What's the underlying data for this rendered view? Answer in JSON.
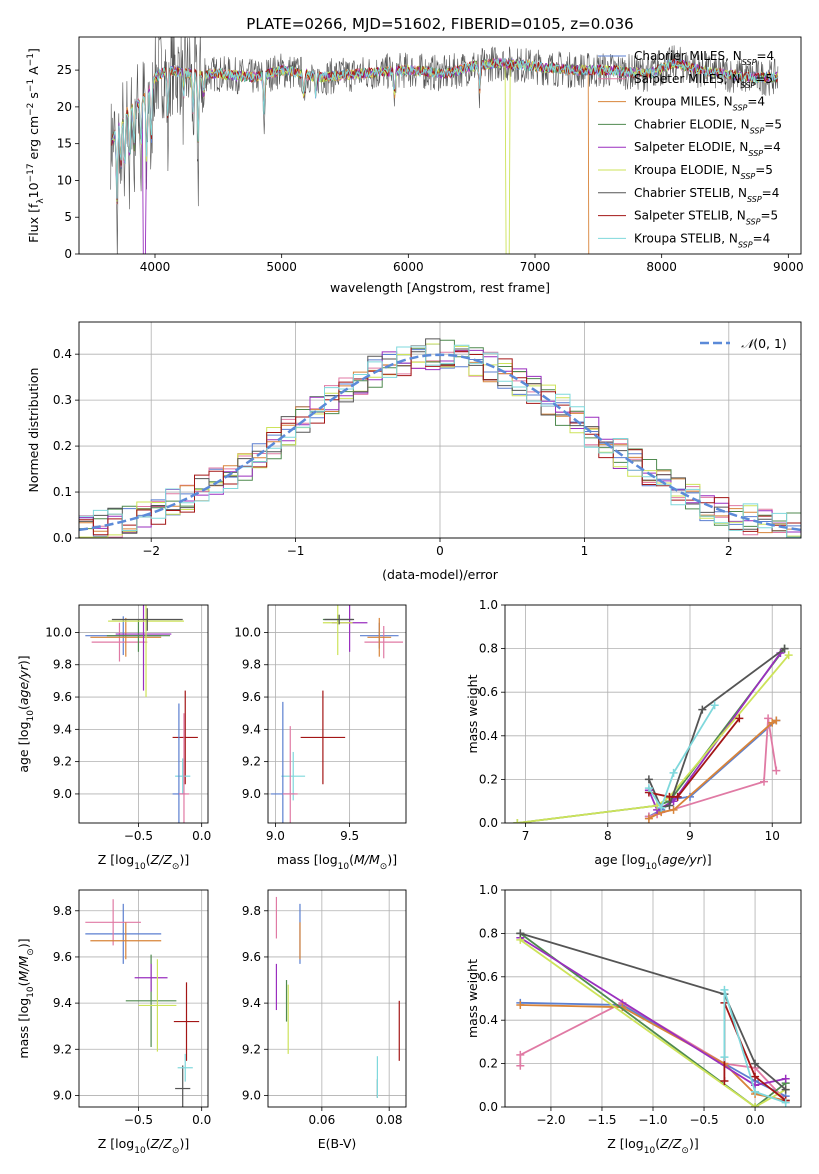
{
  "figure_title": "PLATE=0266, MJD=51602, FIBERID=0105, z=0.036",
  "series_colors": [
    "#5b7fd0",
    "#e07aa4",
    "#d8843a",
    "#4f8a4f",
    "#9a2fbf",
    "#cde35a",
    "#555555",
    "#a31616",
    "#7fd8dc"
  ],
  "chart_data": [
    {
      "type": "line",
      "xlabel": "wavelength [Angstrom, rest frame]",
      "ylabel": "Flux [f_λ10^-17 erg cm^-2 s^-1 A^-1]",
      "xlim": [
        3400,
        9100
      ],
      "ylim": [
        0,
        29.5
      ],
      "xticks": [
        "4000",
        "5000",
        "6000",
        "7000",
        "8000",
        "9000"
      ],
      "yticks": [
        "0",
        "5",
        "10",
        "15",
        "20",
        "25"
      ],
      "legend_position": "top-right",
      "series": [
        {
          "name": "Chabrier MILES, N_SSP=4"
        },
        {
          "name": "Salpeter MILES, N_SSP=5"
        },
        {
          "name": "Kroupa MILES, N_SSP=4"
        },
        {
          "name": "Chabrier ELODIE, N_SSP=5"
        },
        {
          "name": "Salpeter ELODIE, N_SSP=4"
        },
        {
          "name": "Kroupa ELODIE, N_SSP=5"
        },
        {
          "name": "Chabrier STELIB, N_SSP=4"
        },
        {
          "name": "Salpeter STELIB, N_SSP=5"
        },
        {
          "name": "Kroupa STELIB, N_SSP=4"
        }
      ],
      "continuum_x": [
        3650,
        3750,
        3900,
        4000,
        4100,
        4300,
        4500,
        4800,
        5000,
        5300,
        5600,
        6000,
        6300,
        6500,
        6700,
        7000,
        7300,
        7600,
        7900,
        8100,
        8300,
        8500,
        8700,
        8900
      ],
      "continuum_y": [
        15,
        19,
        21,
        24,
        25,
        24.5,
        24.5,
        24,
        25,
        24,
        24.5,
        25,
        24.5,
        25.5,
        26,
        25.5,
        25,
        25,
        24.5,
        26,
        25,
        24.5,
        24,
        24
      ]
    },
    {
      "type": "line",
      "xlabel": "(data-model)/error",
      "ylabel": "Normed distribution",
      "xlim": [
        -2.5,
        2.5
      ],
      "ylim": [
        0,
        0.47
      ],
      "xticks": [
        "−2",
        "−1",
        "0",
        "1",
        "2"
      ],
      "yticks": [
        "0.0",
        "0.1",
        "0.2",
        "0.3",
        "0.4"
      ],
      "grid": true,
      "legend_position": "top-right",
      "reference_curve": "N(0,1)",
      "bin_width": 0.1
    },
    {
      "type": "scatter",
      "xlabel": "Z [log10(Z/Z⊙)]",
      "ylabel": "age  [log10(age/yr)]",
      "xlim": [
        -0.97,
        0.05
      ],
      "ylim": [
        8.82,
        10.17
      ],
      "grid": true,
      "xticks": [
        "−0.5",
        "0.0"
      ],
      "yticks": [
        "9.0",
        "9.2",
        "9.4",
        "9.6",
        "9.8",
        "10.0"
      ],
      "points": [
        {
          "x": -0.62,
          "y": 9.98,
          "ex": 0.3,
          "ey": 0.12
        },
        {
          "x": -0.65,
          "y": 9.94,
          "ex": 0.22,
          "ey": 0.12
        },
        {
          "x": -0.6,
          "y": 9.97,
          "ex": 0.28,
          "ey": 0.12
        },
        {
          "x": -0.5,
          "y": 9.98,
          "ex": 0.25,
          "ey": 0.1
        },
        {
          "x": -0.46,
          "y": 9.99,
          "ex": 0.22,
          "ey": 0.35
        },
        {
          "x": -0.44,
          "y": 10.07,
          "ex": 0.3,
          "ey": 0.47
        },
        {
          "x": -0.43,
          "y": 10.08,
          "ex": 0.28,
          "ey": 0.07
        },
        {
          "x": -0.13,
          "y": 9.35,
          "ex": 0.1,
          "ey": 0.29
        },
        {
          "x": -0.15,
          "y": 9.11,
          "ex": 0.06,
          "ey": 0.11
        },
        {
          "x": -0.18,
          "y": 9.0,
          "ex": 0.05,
          "ey": 0.56
        },
        {
          "x": -0.14,
          "y": 9.0,
          "ex": 0.04,
          "ey": 0.5
        }
      ]
    },
    {
      "type": "scatter",
      "xlabel": "mass [log10(M/M⊙)]",
      "ylabel": "",
      "xlim": [
        8.95,
        9.88
      ],
      "ylim": [
        8.82,
        10.17
      ],
      "grid": true,
      "xticks": [
        "9.0",
        "9.5"
      ],
      "yticks": [
        "9.0",
        "9.2",
        "9.4",
        "9.6",
        "9.8",
        "10.0"
      ],
      "points": [
        {
          "x": 9.7,
          "y": 9.98,
          "ex": 0.13,
          "ey": 0.08
        },
        {
          "x": 9.73,
          "y": 9.94,
          "ex": 0.13,
          "ey": 0.1
        },
        {
          "x": 9.7,
          "y": 9.97,
          "ex": 0.08,
          "ey": 0.12
        },
        {
          "x": 9.42,
          "y": 10.08,
          "ex": 0.1,
          "ey": 0.03
        },
        {
          "x": 9.5,
          "y": 10.06,
          "ex": 0.12,
          "ey": 0.18
        },
        {
          "x": 9.42,
          "y": 10.06,
          "ex": 0.1,
          "ey": 0.2
        },
        {
          "x": 9.43,
          "y": 10.08,
          "ex": 0.1,
          "ey": 0.03
        },
        {
          "x": 9.32,
          "y": 9.35,
          "ex": 0.15,
          "ey": 0.29
        },
        {
          "x": 9.12,
          "y": 9.11,
          "ex": 0.08,
          "ey": 0.15
        },
        {
          "x": 9.05,
          "y": 9.0,
          "ex": 0.08,
          "ey": 0.57
        },
        {
          "x": 9.1,
          "y": 9.0,
          "ex": 0.05,
          "ey": 0.42
        }
      ]
    },
    {
      "type": "line",
      "xlabel": "age  [log10(age/yr)]",
      "ylabel": "mass weight",
      "xlim": [
        6.75,
        10.35
      ],
      "ylim": [
        0,
        1.0
      ],
      "grid": true,
      "xticks": [
        "7",
        "8",
        "9",
        "10"
      ],
      "yticks": [
        "0.0",
        "0.2",
        "0.4",
        "0.6",
        "0.8",
        "1.0"
      ],
      "series": [
        {
          "x": [
            8.5,
            8.65,
            8.8,
            9.0,
            10.05
          ],
          "y": [
            0.03,
            0.06,
            0.11,
            0.12,
            0.47
          ]
        },
        {
          "x": [
            8.5,
            8.6,
            9.9,
            9.95,
            10.05
          ],
          "y": [
            0.03,
            0.04,
            0.19,
            0.48,
            0.24
          ]
        },
        {
          "x": [
            8.5,
            8.65,
            8.8,
            10.0,
            10.05
          ],
          "y": [
            0.02,
            0.05,
            0.06,
            0.46,
            0.47
          ]
        },
        {
          "x": [
            6.9,
            8.6,
            8.75,
            10.15
          ],
          "y": [
            0.0,
            0.08,
            0.1,
            0.8
          ]
        },
        {
          "x": [
            8.5,
            8.6,
            8.8,
            10.1
          ],
          "y": [
            0.15,
            0.06,
            0.1,
            0.78
          ]
        },
        {
          "x": [
            6.9,
            8.6,
            8.75,
            10.2
          ],
          "y": [
            0.0,
            0.08,
            0.12,
            0.77
          ]
        },
        {
          "x": [
            8.5,
            8.65,
            8.75,
            9.15,
            10.15
          ],
          "y": [
            0.2,
            0.07,
            0.08,
            0.52,
            0.8
          ]
        },
        {
          "x": [
            8.5,
            8.75,
            8.85,
            9.6
          ],
          "y": [
            0.14,
            0.12,
            0.12,
            0.48
          ]
        },
        {
          "x": [
            8.5,
            8.65,
            8.8,
            9.3
          ],
          "y": [
            0.16,
            0.07,
            0.23,
            0.54
          ]
        }
      ]
    },
    {
      "type": "scatter",
      "xlabel": "Z [log10(Z/Z⊙)]",
      "ylabel": "mass [log10(M/M⊙)]",
      "xlim": [
        -0.97,
        0.05
      ],
      "ylim": [
        8.95,
        9.89
      ],
      "grid": true,
      "xticks": [
        "−0.5",
        "0.0"
      ],
      "yticks": [
        "9.0",
        "9.2",
        "9.4",
        "9.6",
        "9.8"
      ],
      "points": [
        {
          "x": -0.62,
          "y": 9.7,
          "ex": 0.3,
          "ey": 0.13
        },
        {
          "x": -0.7,
          "y": 9.75,
          "ex": 0.22,
          "ey": 0.1
        },
        {
          "x": -0.6,
          "y": 9.67,
          "ex": 0.28,
          "ey": 0.08
        },
        {
          "x": -0.4,
          "y": 9.41,
          "ex": 0.2,
          "ey": 0.2
        },
        {
          "x": -0.4,
          "y": 9.51,
          "ex": 0.13,
          "ey": 0.06
        },
        {
          "x": -0.35,
          "y": 9.39,
          "ex": 0.15,
          "ey": 0.2
        },
        {
          "x": -0.15,
          "y": 9.03,
          "ex": 0.06,
          "ey": 0.1
        },
        {
          "x": -0.12,
          "y": 9.32,
          "ex": 0.1,
          "ey": 0.17
        },
        {
          "x": -0.13,
          "y": 9.12,
          "ex": 0.06,
          "ey": 0.06
        }
      ]
    },
    {
      "type": "scatter",
      "xlabel": "E(B-V)",
      "ylabel": "",
      "xlim": [
        0.044,
        0.085
      ],
      "ylim": [
        8.95,
        9.89
      ],
      "grid": true,
      "xticks": [
        "0.06",
        "0.08"
      ],
      "yticks": [
        "9.0",
        "9.2",
        "9.4",
        "9.6",
        "9.8"
      ],
      "points": [
        {
          "x": 0.0535,
          "y": 9.7,
          "ex": 0,
          "ey": 0.13
        },
        {
          "x": 0.0465,
          "y": 9.77,
          "ex": 0,
          "ey": 0.09
        },
        {
          "x": 0.0535,
          "y": 9.67,
          "ex": 0,
          "ey": 0.08
        },
        {
          "x": 0.0495,
          "y": 9.41,
          "ex": 0,
          "ey": 0.09
        },
        {
          "x": 0.0465,
          "y": 9.47,
          "ex": 0,
          "ey": 0.1
        },
        {
          "x": 0.05,
          "y": 9.33,
          "ex": 0,
          "ey": 0.15
        },
        {
          "x": 0.0765,
          "y": 9.03,
          "ex": 0,
          "ey": 0.04
        },
        {
          "x": 0.083,
          "y": 9.28,
          "ex": 0,
          "ey": 0.13
        },
        {
          "x": 0.0765,
          "y": 9.08,
          "ex": 0,
          "ey": 0.09
        }
      ]
    },
    {
      "type": "line",
      "xlabel": "Z [log10(Z/Z⊙)]",
      "ylabel": "mass weight",
      "xlim": [
        -2.45,
        0.45
      ],
      "ylim": [
        0,
        1.0
      ],
      "grid": true,
      "xticks": [
        "−2.0",
        "−1.5",
        "−1.0",
        "−0.5",
        "0.0"
      ],
      "yticks": [
        "0.0",
        "0.2",
        "0.4",
        "0.6",
        "0.8",
        "1.0"
      ],
      "series": [
        {
          "x": [
            -2.3,
            -1.3,
            -0.3,
            0.0,
            0.3
          ],
          "y": [
            0.48,
            0.47,
            0.2,
            0.12,
            0.05
          ]
        },
        {
          "x": [
            -2.3,
            -2.3,
            -1.3,
            -0.3,
            0.0,
            0.3
          ],
          "y": [
            0.19,
            0.24,
            0.48,
            0.2,
            0.18,
            0.03
          ]
        },
        {
          "x": [
            -2.3,
            -1.3,
            -0.3,
            0.0,
            0.3
          ],
          "y": [
            0.47,
            0.46,
            0.2,
            0.06,
            0.03
          ]
        },
        {
          "x": [
            -2.3,
            0.0,
            0.3
          ],
          "y": [
            0.8,
            0.0,
            0.11
          ]
        },
        {
          "x": [
            -2.3,
            0.0,
            0.3
          ],
          "y": [
            0.78,
            0.1,
            0.13
          ]
        },
        {
          "x": [
            -2.3,
            0.0,
            0.3
          ],
          "y": [
            0.77,
            0.0,
            0.08
          ]
        },
        {
          "x": [
            -2.3,
            -0.3,
            0.0,
            0.3
          ],
          "y": [
            0.8,
            0.52,
            0.2,
            0.08
          ]
        },
        {
          "x": [
            -0.3,
            -0.3,
            0.0,
            0.3
          ],
          "y": [
            0.12,
            0.48,
            0.14,
            0.03
          ]
        },
        {
          "x": [
            -0.3,
            -0.3,
            0.0,
            0.3
          ],
          "y": [
            0.23,
            0.54,
            0.07,
            0.02
          ]
        }
      ]
    }
  ]
}
